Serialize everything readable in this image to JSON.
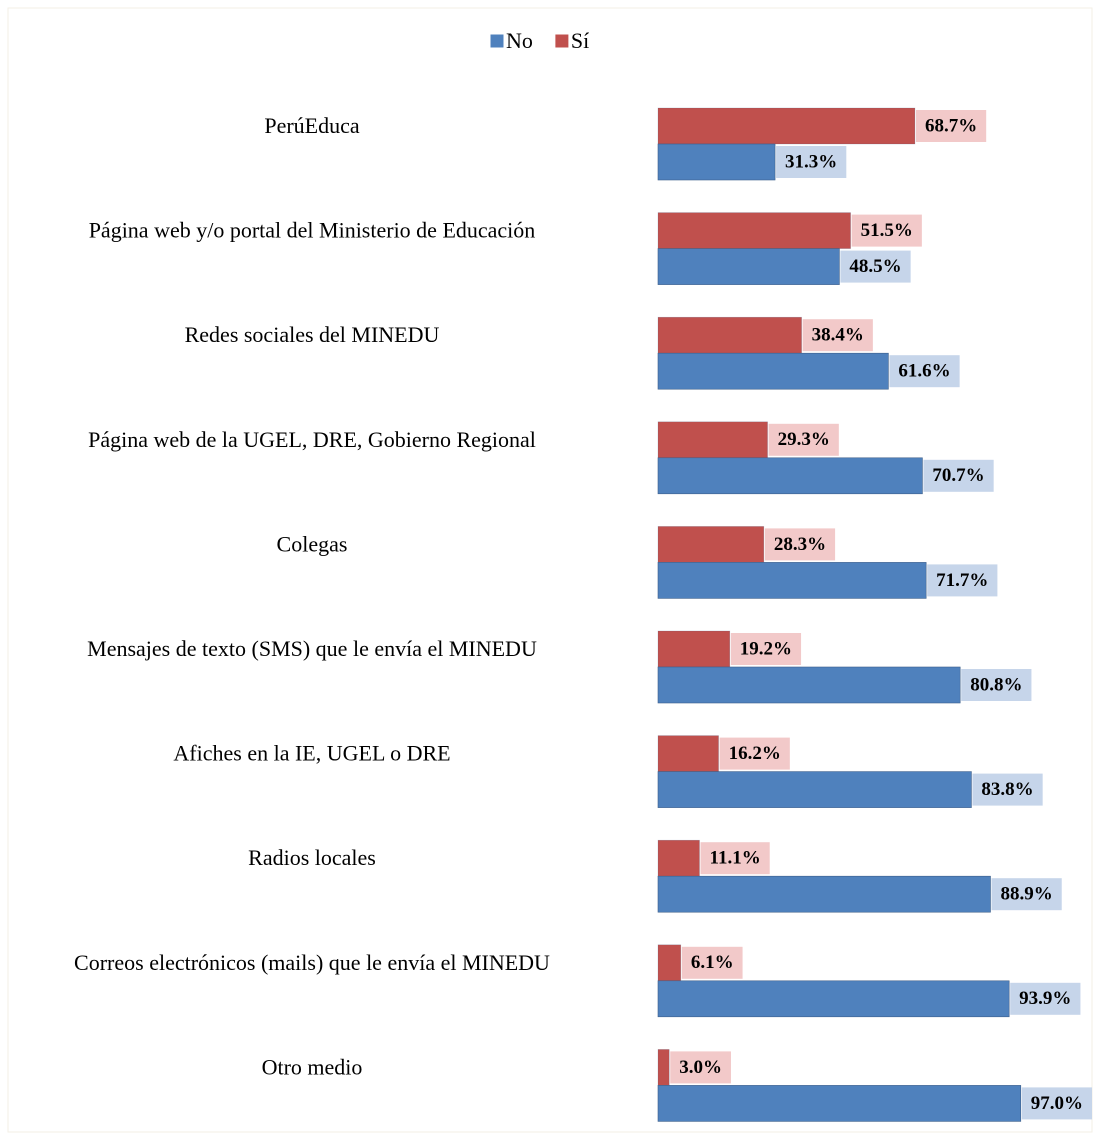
{
  "chart_data": {
    "type": "barh",
    "categories": [
      "PerúEduca",
      "Página web y/o portal del Ministerio de Educación",
      "Redes sociales del MINEDU",
      "Página web de la UGEL, DRE, Gobierno Regional",
      "Colegas",
      "Mensajes de texto (SMS) que le envía el MINEDU",
      "Afiches en la IE, UGEL o DRE",
      "Radios locales",
      "Correos electrónicos (mails) que le envía el MINEDU",
      "Otro medio"
    ],
    "series": [
      {
        "name": "No",
        "color": "#4f81bd",
        "label_bg": "#c6d5ea",
        "values": [
          31.3,
          48.5,
          61.6,
          70.7,
          71.7,
          80.8,
          83.8,
          88.9,
          93.9,
          97.0
        ],
        "value_labels": [
          "31.3%",
          "48.5%",
          "61.6%",
          "70.7%",
          "71.7%",
          "80.8%",
          "83.8%",
          "88.9%",
          "93.9%",
          "97.0%"
        ]
      },
      {
        "name": "Sí",
        "color": "#c0504d",
        "label_bg": "#f2c9c9",
        "values": [
          68.7,
          51.5,
          38.4,
          29.3,
          28.3,
          19.2,
          16.2,
          11.1,
          6.1,
          3.0
        ],
        "value_labels": [
          "68.7%",
          "51.5%",
          "38.4%",
          "29.3%",
          "28.3%",
          "19.2%",
          "16.2%",
          "11.1%",
          "6.1%",
          "3.0%"
        ]
      }
    ],
    "xlim": [
      0,
      100
    ],
    "legend": "top"
  }
}
